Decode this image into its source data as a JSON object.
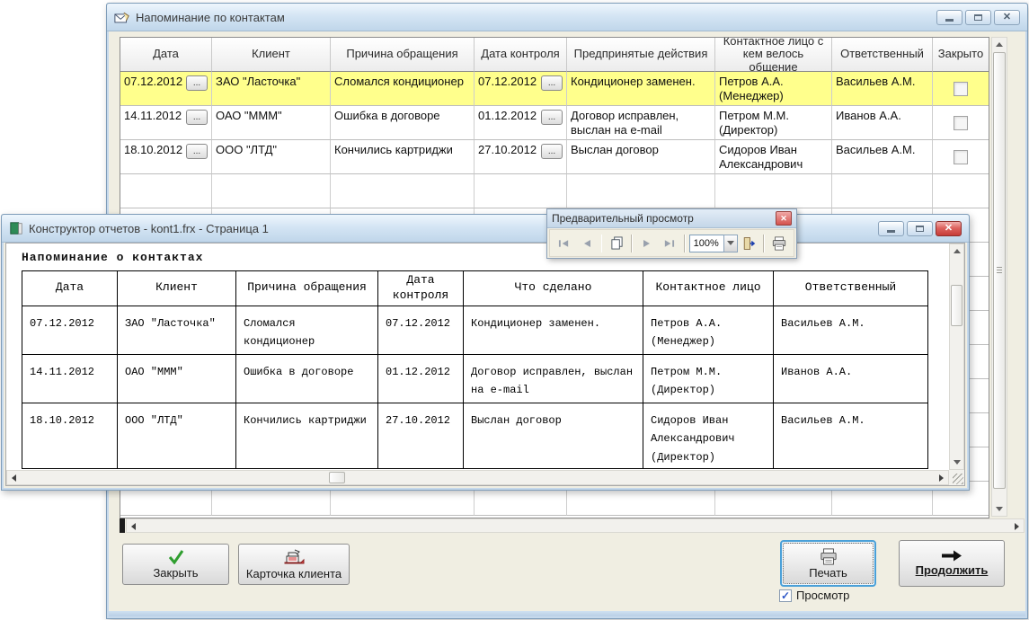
{
  "main_window": {
    "title": "Напоминание по контактам",
    "grid": {
      "headers": [
        "Дата",
        "Клиент",
        "Причина обращения",
        "Дата контроля",
        "Предпринятые действия",
        "Контактное лицо с кем велось общение",
        "Ответственный",
        "Закрыто"
      ],
      "ellipsis": "...",
      "rows": [
        {
          "date": "07.12.2012",
          "client": "ЗАО \"Ласточка\"",
          "reason": "Сломался кондиционер",
          "control_date": "07.12.2012",
          "actions": "Кондиционер заменен.",
          "contact": "Петров А.А. (Менеджер)",
          "responsible": "Васильев А.М.",
          "closed": false,
          "highlighted": true
        },
        {
          "date": "14.11.2012",
          "client": "ОАО \"МММ\"",
          "reason": "Ошибка в договоре",
          "control_date": "01.12.2012",
          "actions": "Договор исправлен, выслан на e-mail",
          "contact": "Петром М.М. (Директор)",
          "responsible": "Иванов А.А.",
          "closed": false,
          "highlighted": false
        },
        {
          "date": "18.10.2012",
          "client": "ООО \"ЛТД\"",
          "reason": "Кончились картриджи",
          "control_date": "27.10.2012",
          "actions": "Выслан договор",
          "contact": "Сидоров Иван Александрович",
          "responsible": "Васильев А.М.",
          "closed": false,
          "highlighted": false
        }
      ]
    }
  },
  "report_window": {
    "title": "Конструктор отчетов - kont1.frx - Страница 1",
    "page_title": "Напоминание о контактах",
    "table": {
      "headers": [
        "Дата",
        "Клиент",
        "Причина обращения",
        "Дата контроля",
        "Что сделано",
        "Контактное лицо",
        "Ответственный"
      ],
      "rows": [
        [
          "07.12.2012",
          "ЗАО \"Ласточка\"",
          "Сломался кондиционер",
          "07.12.2012",
          "Кондиционер заменен.",
          "Петров А.А. (Менеджер)",
          "Васильев А.М."
        ],
        [
          "14.11.2012",
          "ОАО \"МММ\"",
          "Ошибка в договоре",
          "01.12.2012",
          "Договор исправлен, выслан на e-mail",
          "Петром М.М. (Директор)",
          "Иванов А.А."
        ],
        [
          "18.10.2012",
          "ООО \"ЛТД\"",
          "Кончились картриджи",
          "27.10.2012",
          "Выслан договор",
          "Сидоров Иван Александрович (Директор)",
          "Васильев А.М."
        ]
      ]
    }
  },
  "preview_toolbar": {
    "title": "Предварительный просмотр",
    "zoom": "100%"
  },
  "footer": {
    "close": "Закрыть",
    "client_card": "Карточка клиента",
    "print": "Печать",
    "continue_label": "Продолжить",
    "preview_label": "Просмотр",
    "preview_checked": true
  },
  "colors": {
    "highlight_row": "#ffff8c",
    "focus_ring": "#4aa0d8",
    "titlebar_top": "#eef6fd",
    "titlebar_bottom": "#c0d6ea"
  }
}
